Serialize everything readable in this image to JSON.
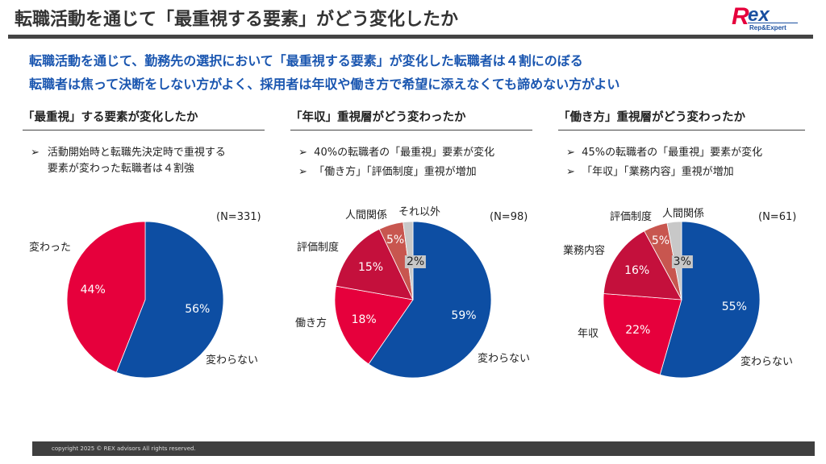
{
  "header": {
    "title": "転職活動を通じて「最重視する要素」がどう変化したか",
    "logo_text": "Rex",
    "logo_sub": "Rep&Expert"
  },
  "summary": [
    "転職活動を通じて、勤務先の選択において「最重視する要素」が変化した転職者は４割にのぼる",
    "転職者は焦って決断をしない方がよく、採用者は年収や働き方で希望に添えなくても諦めない方がよい"
  ],
  "sections": [
    {
      "heading": "「最重視」する要素が変化したか",
      "bullets": [
        "活動開始時と転職先決定時で重視する\n要素が変わった転職者は４割強"
      ]
    },
    {
      "heading": "「年収」重視層がどう変わったか",
      "bullets": [
        "40%の転職者の「最重視」要素が変化",
        "「働き方」「評価制度」重視が増加"
      ]
    },
    {
      "heading": "「働き方」重視層がどう変わったか",
      "bullets": [
        "45%の転職者の「最重視」要素が変化",
        "「年収」「業務内容」重視が増加"
      ]
    }
  ],
  "bullet_icon": "arrowhead-right",
  "chart_data": [
    {
      "type": "pie",
      "note": "(N=331)",
      "categories": [
        "変わらない",
        "変わった"
      ],
      "values": [
        56,
        44
      ],
      "labels": [
        "56%",
        "44%"
      ],
      "colors": [
        "#0d4ea3",
        "#e6003c"
      ]
    },
    {
      "type": "pie",
      "note": "(N=98)",
      "categories": [
        "変わらない",
        "働き方",
        "評価制度",
        "人間関係",
        "それ以外"
      ],
      "values": [
        59,
        18,
        15,
        5,
        2
      ],
      "labels": [
        "59%",
        "18%",
        "15%",
        "5%",
        "2%"
      ],
      "colors": [
        "#0d4ea3",
        "#e6003c",
        "#c4103c",
        "#c8564f",
        "#c8c8c8"
      ]
    },
    {
      "type": "pie",
      "note": "(N=61)",
      "categories": [
        "変わらない",
        "年収",
        "業務内容",
        "評価制度",
        "人間関係"
      ],
      "values": [
        55,
        22,
        16,
        5,
        3
      ],
      "labels": [
        "55%",
        "22%",
        "16%",
        "5%",
        "3%"
      ],
      "colors": [
        "#0d4ea3",
        "#e6003c",
        "#c4103c",
        "#c8564f",
        "#c8c8c8"
      ]
    }
  ],
  "footer": "copyright 2025 © REX advisors All rights reserved."
}
